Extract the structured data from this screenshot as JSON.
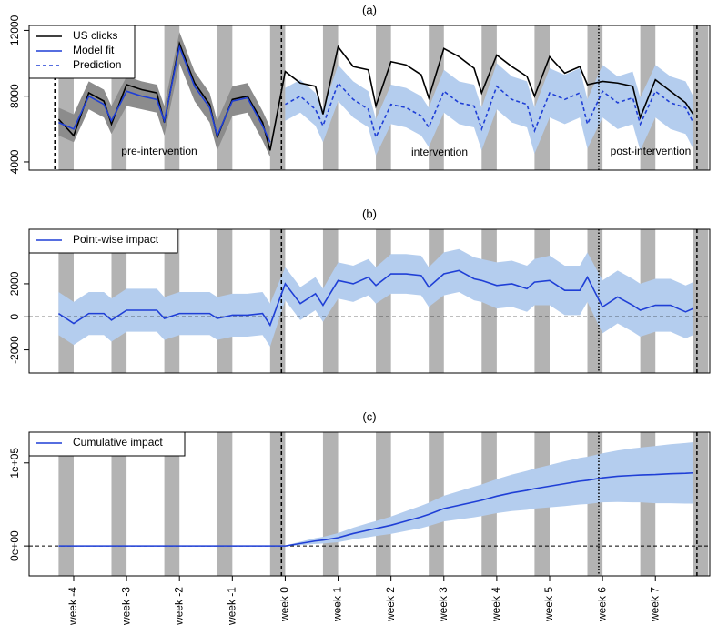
{
  "chart_data": [
    {
      "type": "line",
      "title": "(a)",
      "x": [
        -30,
        -28,
        -26,
        -24,
        -23,
        -21,
        -19,
        -17,
        -16,
        -14,
        -12,
        -10,
        -9,
        -7,
        -5,
        -3,
        -2,
        0,
        2,
        4,
        5,
        7,
        9,
        11,
        12,
        14,
        16,
        18,
        19,
        21,
        23,
        25,
        26,
        28,
        30,
        32,
        33,
        35,
        37,
        39,
        40,
        42,
        44,
        46,
        47,
        49,
        51,
        53,
        54
      ],
      "xlim": [
        -33.9,
        56.2
      ],
      "ylim": [
        3500,
        12300
      ],
      "yticks": [
        4000,
        8000,
        12000
      ],
      "weekends": [
        [
          -30,
          -28
        ],
        [
          -23,
          -21
        ],
        [
          -16,
          -14
        ],
        [
          -9,
          -7
        ],
        [
          -2,
          0
        ],
        [
          5,
          7
        ],
        [
          12,
          14
        ],
        [
          19,
          21
        ],
        [
          26,
          28
        ],
        [
          33,
          35
        ],
        [
          40,
          42
        ],
        [
          47,
          49
        ],
        [
          54,
          56
        ]
      ],
      "vlines": [
        {
          "x": -30.5,
          "style": "dashed"
        },
        {
          "x": -0.5,
          "style": "dashed"
        },
        {
          "x": 41.5,
          "style": "dotted"
        },
        {
          "x": 54.5,
          "style": "dashed"
        }
      ],
      "annotations": [
        "pre-intervention",
        "intervention",
        "post-intervention"
      ],
      "bands": [
        {
          "color": "#8c8c8c",
          "lower": [
            5600,
            5200,
            7200,
            6700,
            5700,
            7400,
            7200,
            7000,
            5600,
            10000,
            7700,
            6400,
            4700,
            6800,
            7000,
            5300,
            4300,
            null,
            null,
            null,
            null,
            null,
            null,
            null,
            null,
            null,
            null,
            null,
            null,
            null,
            null,
            null,
            null,
            null,
            null,
            null,
            null,
            null,
            null,
            null,
            null,
            null,
            null,
            null,
            null,
            null,
            null,
            null,
            null
          ],
          "upper": [
            7300,
            6900,
            8900,
            8400,
            7400,
            9200,
            8900,
            8700,
            7400,
            11900,
            9500,
            8200,
            6500,
            8600,
            8800,
            7100,
            6100,
            null,
            null,
            null,
            null,
            null,
            null,
            null,
            null,
            null,
            null,
            null,
            null,
            null,
            null,
            null,
            null,
            null,
            null,
            null,
            null,
            null,
            null,
            null,
            null,
            null,
            null,
            null,
            null,
            null,
            null,
            null,
            null
          ]
        },
        {
          "color": "#b4cdee",
          "lower": [
            null,
            null,
            null,
            null,
            null,
            null,
            null,
            null,
            null,
            null,
            null,
            null,
            null,
            null,
            null,
            null,
            null,
            6500,
            7000,
            6200,
            5200,
            7700,
            6700,
            6100,
            4400,
            6300,
            6100,
            5600,
            4900,
            7000,
            6300,
            6100,
            4700,
            7200,
            6400,
            6100,
            4500,
            6700,
            6300,
            6700,
            4800,
            6700,
            6000,
            6300,
            4700,
            6700,
            6000,
            5700,
            4800
          ],
          "upper": [
            null,
            null,
            null,
            null,
            null,
            null,
            null,
            null,
            null,
            null,
            null,
            null,
            null,
            null,
            null,
            null,
            null,
            8500,
            9000,
            8200,
            7200,
            9900,
            8900,
            8300,
            6600,
            8700,
            8500,
            8000,
            7300,
            9600,
            8900,
            8700,
            7300,
            10000,
            9200,
            8900,
            7300,
            9700,
            9300,
            9700,
            7800,
            9900,
            9200,
            9500,
            7900,
            9900,
            9200,
            8900,
            8000
          ]
        }
      ],
      "series": [
        {
          "name": "US clicks",
          "color": "#000000",
          "values": [
            6600,
            5600,
            8200,
            7700,
            6300,
            8700,
            8400,
            8200,
            6400,
            11200,
            8800,
            7500,
            5500,
            7800,
            8000,
            6400,
            4700,
            9500,
            8800,
            8600,
            6900,
            11000,
            9800,
            9600,
            7400,
            10100,
            9900,
            9300,
            7900,
            10900,
            10400,
            9700,
            8200,
            10500,
            9800,
            9200,
            8000,
            10400,
            9400,
            9800,
            8700,
            8900,
            8800,
            8600,
            6700,
            9000,
            8300,
            7600,
            6900
          ]
        },
        {
          "name": "Model fit",
          "color": "#1f3fd6",
          "values": [
            6400,
            6000,
            8000,
            7500,
            6500,
            8300,
            8000,
            7800,
            6500,
            11000,
            8600,
            7300,
            5600,
            7700,
            7900,
            6200,
            5200,
            null,
            null,
            null,
            null,
            null,
            null,
            null,
            null,
            null,
            null,
            null,
            null,
            null,
            null,
            null,
            null,
            null,
            null,
            null,
            null,
            null,
            null,
            null,
            null,
            null,
            null,
            null,
            null,
            null,
            null,
            null,
            null
          ]
        },
        {
          "name": "Prediction",
          "color": "#1f3fd6",
          "dashed": true,
          "values": [
            null,
            null,
            null,
            null,
            null,
            null,
            null,
            null,
            null,
            null,
            null,
            null,
            null,
            null,
            null,
            null,
            null,
            7500,
            8000,
            7200,
            6200,
            8800,
            7800,
            7200,
            5500,
            7500,
            7300,
            6800,
            6100,
            8300,
            7600,
            7400,
            6000,
            8600,
            7800,
            7500,
            5900,
            8200,
            7800,
            8200,
            6300,
            8300,
            7600,
            7900,
            6300,
            8300,
            7600,
            7300,
            6400
          ]
        }
      ]
    },
    {
      "type": "line",
      "title": "(b)",
      "x": [
        -30,
        -28,
        -26,
        -24,
        -23,
        -21,
        -19,
        -17,
        -16,
        -14,
        -12,
        -10,
        -9,
        -7,
        -5,
        -3,
        -2,
        0,
        2,
        4,
        5,
        7,
        9,
        11,
        12,
        14,
        16,
        18,
        19,
        21,
        23,
        25,
        26,
        28,
        30,
        32,
        33,
        35,
        37,
        39,
        40,
        42,
        44,
        46,
        47,
        49,
        51,
        53,
        54
      ],
      "xlim": [
        -33.9,
        56.2
      ],
      "ylim": [
        -3400,
        5300
      ],
      "yticks": [
        -2000,
        0,
        2000
      ],
      "reference_line": 0,
      "weekends": [
        [
          -30,
          -28
        ],
        [
          -23,
          -21
        ],
        [
          -16,
          -14
        ],
        [
          -9,
          -7
        ],
        [
          -2,
          0
        ],
        [
          5,
          7
        ],
        [
          12,
          14
        ],
        [
          19,
          21
        ],
        [
          26,
          28
        ],
        [
          33,
          35
        ],
        [
          40,
          42
        ],
        [
          47,
          49
        ],
        [
          54,
          56
        ]
      ],
      "vlines": [
        {
          "x": -0.5,
          "style": "dashed"
        },
        {
          "x": 41.5,
          "style": "dotted"
        },
        {
          "x": 54.5,
          "style": "dashed"
        }
      ],
      "bands": [
        {
          "color": "#b4cdee",
          "lower": [
            -1100,
            -1700,
            -1100,
            -1100,
            -1500,
            -900,
            -900,
            -900,
            -1400,
            -1100,
            -1100,
            -1100,
            -1400,
            -1200,
            -1200,
            -1100,
            -1800,
            1000,
            -200,
            400,
            -300,
            1100,
            900,
            1300,
            800,
            1400,
            1400,
            1300,
            600,
            1300,
            1500,
            1000,
            900,
            500,
            600,
            300,
            700,
            700,
            100,
            100,
            900,
            -1000,
            -400,
            -900,
            -1200,
            -900,
            -900,
            -1300,
            -1100
          ],
          "upper": [
            1500,
            900,
            1500,
            1500,
            1100,
            1700,
            1700,
            1700,
            1200,
            1500,
            1500,
            1500,
            1200,
            1400,
            1400,
            1500,
            800,
            3000,
            1800,
            2400,
            1700,
            3300,
            3100,
            3500,
            3000,
            3800,
            3800,
            3700,
            3000,
            3900,
            4100,
            3600,
            3500,
            3300,
            3400,
            3100,
            3500,
            3700,
            3100,
            3100,
            3900,
            2200,
            2800,
            2300,
            2000,
            2300,
            2300,
            1900,
            2100
          ]
        }
      ],
      "series": [
        {
          "name": "Point-wise impact",
          "color": "#1f3fd6",
          "values": [
            200,
            -400,
            200,
            200,
            -200,
            400,
            400,
            400,
            -100,
            200,
            200,
            200,
            -100,
            100,
            100,
            200,
            -500,
            2000,
            800,
            1400,
            700,
            2200,
            2000,
            2400,
            1900,
            2600,
            2600,
            2500,
            1800,
            2600,
            2800,
            2300,
            2200,
            1900,
            2000,
            1700,
            2100,
            2200,
            1600,
            1600,
            2400,
            600,
            1200,
            700,
            400,
            700,
            700,
            300,
            500
          ]
        }
      ]
    },
    {
      "type": "line",
      "title": "(c)",
      "x": [
        -30,
        -28,
        -26,
        -24,
        -23,
        -21,
        -19,
        -17,
        -16,
        -14,
        -12,
        -10,
        -9,
        -7,
        -5,
        -3,
        -2,
        0,
        2,
        4,
        5,
        7,
        9,
        11,
        12,
        14,
        16,
        18,
        19,
        21,
        23,
        25,
        26,
        28,
        30,
        32,
        33,
        35,
        37,
        39,
        40,
        42,
        44,
        46,
        47,
        49,
        51,
        53,
        54
      ],
      "xlim": [
        -33.9,
        56.2
      ],
      "ylim": [
        -36000,
        137000
      ],
      "yticks": [
        {
          "value": 0,
          "label": "0e+00"
        },
        {
          "value": 100000,
          "label": "1e+05"
        }
      ],
      "reference_line": 0,
      "xticks": [
        {
          "value": -28,
          "label": "week -4"
        },
        {
          "value": -21,
          "label": "week -3"
        },
        {
          "value": -14,
          "label": "week -2"
        },
        {
          "value": -7,
          "label": "week -1"
        },
        {
          "value": 0,
          "label": "week 0"
        },
        {
          "value": 7,
          "label": "week 1"
        },
        {
          "value": 14,
          "label": "week 2"
        },
        {
          "value": 21,
          "label": "week 3"
        },
        {
          "value": 28,
          "label": "week 4"
        },
        {
          "value": 35,
          "label": "week 5"
        },
        {
          "value": 42,
          "label": "week 6"
        },
        {
          "value": 49,
          "label": "week 7"
        }
      ],
      "weekends": [
        [
          -30,
          -28
        ],
        [
          -23,
          -21
        ],
        [
          -16,
          -14
        ],
        [
          -9,
          -7
        ],
        [
          -2,
          0
        ],
        [
          5,
          7
        ],
        [
          12,
          14
        ],
        [
          19,
          21
        ],
        [
          26,
          28
        ],
        [
          33,
          35
        ],
        [
          40,
          42
        ],
        [
          47,
          49
        ],
        [
          54,
          56
        ]
      ],
      "vlines": [
        {
          "x": -0.5,
          "style": "dashed"
        },
        {
          "x": 41.5,
          "style": "dotted"
        },
        {
          "x": 54.5,
          "style": "dashed"
        }
      ],
      "bands": [
        {
          "color": "#b4cdee",
          "lower": [
            0,
            0,
            0,
            0,
            0,
            0,
            0,
            0,
            0,
            0,
            0,
            0,
            0,
            0,
            0,
            0,
            0,
            -500,
            1000,
            2500,
            3000,
            4500,
            8000,
            10500,
            12000,
            14500,
            18000,
            21500,
            24000,
            29500,
            32000,
            34500,
            36000,
            39500,
            42000,
            43500,
            45000,
            46500,
            48000,
            50000,
            50500,
            52500,
            53000,
            52500,
            52500,
            51500,
            51500,
            51000,
            51000
          ],
          "upper": [
            0,
            0,
            0,
            0,
            0,
            0,
            0,
            0,
            0,
            0,
            0,
            0,
            0,
            0,
            0,
            0,
            0,
            500,
            5000,
            9500,
            11000,
            15500,
            22000,
            27500,
            30000,
            35500,
            42000,
            48500,
            52000,
            60500,
            66000,
            71500,
            74000,
            80500,
            86000,
            90500,
            93000,
            97500,
            102000,
            106000,
            107500,
            111500,
            115000,
            117500,
            118500,
            120500,
            122500,
            124000,
            125000
          ]
        }
      ],
      "series": [
        {
          "name": "Cumulative impact",
          "color": "#1f3fd6",
          "values": [
            0,
            0,
            0,
            0,
            0,
            0,
            0,
            0,
            0,
            0,
            0,
            0,
            0,
            0,
            0,
            0,
            0,
            0,
            3000,
            6000,
            7000,
            10000,
            15000,
            19000,
            21000,
            25000,
            30000,
            35000,
            38000,
            45000,
            49000,
            53000,
            55000,
            60000,
            64000,
            67000,
            69000,
            72000,
            75000,
            78000,
            79000,
            82000,
            84000,
            85000,
            85500,
            86000,
            87000,
            87500,
            88000
          ]
        }
      ]
    }
  ]
}
